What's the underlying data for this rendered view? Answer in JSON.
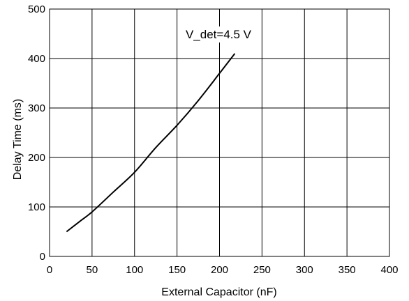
{
  "chart_data": {
    "type": "line",
    "xlabel": "External Capacitor (nF)",
    "ylabel": "Delay Time (ms)",
    "xlim": [
      0,
      400
    ],
    "ylim": [
      0,
      500
    ],
    "xticks": [
      0,
      50,
      100,
      150,
      200,
      250,
      300,
      350,
      400
    ],
    "yticks": [
      0,
      100,
      200,
      300,
      400,
      500
    ],
    "grid": true,
    "annotation": "V_det=4.5 V",
    "series": [
      {
        "x": [
          20,
          35,
          50,
          75,
          100,
          125,
          150,
          175,
          200,
          218
        ],
        "y": [
          50,
          70,
          90,
          130,
          170,
          220,
          265,
          315,
          370,
          410
        ]
      }
    ]
  }
}
